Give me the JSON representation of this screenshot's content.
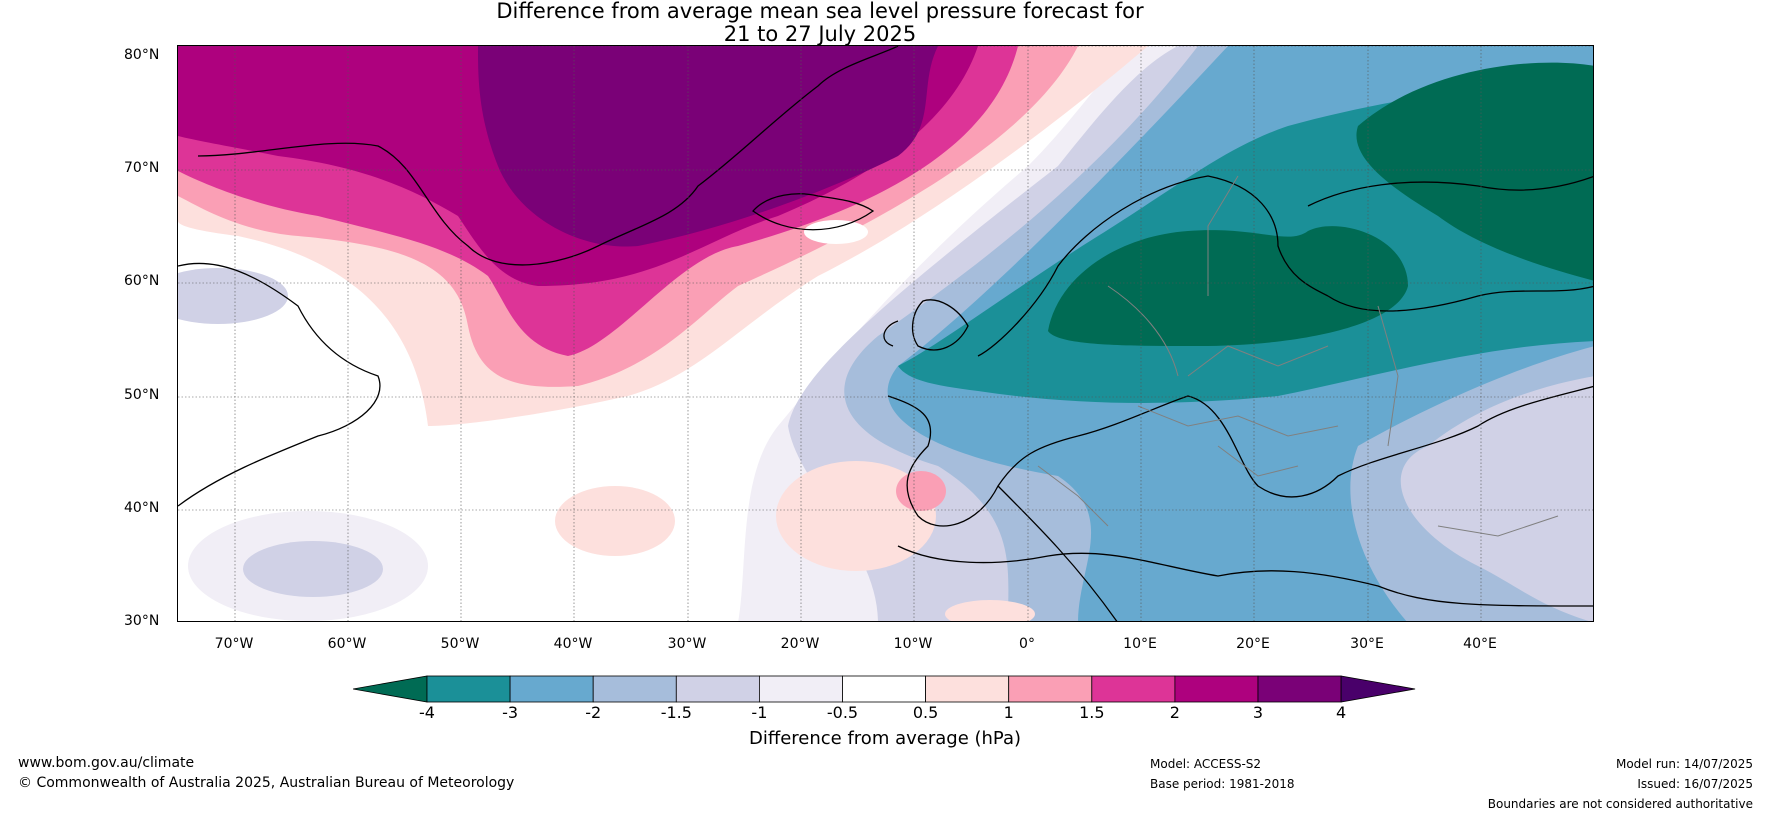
{
  "title": {
    "line1": "Difference from average mean sea level pressure forecast for",
    "line2": "21 to 27 July 2025"
  },
  "axes": {
    "lat_labels": [
      "80°N",
      "70°N",
      "60°N",
      "50°N",
      "40°N",
      "30°N"
    ],
    "lon_labels": [
      "70°W",
      "60°W",
      "50°W",
      "40°W",
      "30°W",
      "20°W",
      "10°W",
      "0°",
      "10°E",
      "20°E",
      "30°E",
      "40°E"
    ]
  },
  "colorbar": {
    "ticks": [
      "-4",
      "-3",
      "-2",
      "-1.5",
      "-1",
      "-0.5",
      "0.5",
      "1",
      "1.5",
      "2",
      "3",
      "4"
    ],
    "colors": [
      "#006b54",
      "#1b9098",
      "#67a9cf",
      "#a6bddb",
      "#d0d1e6",
      "#f1eef6",
      "#ffffff",
      "#fde0dd",
      "#fa9fb5",
      "#dd3497",
      "#ae017e",
      "#7a0177",
      "#49006a"
    ],
    "title": "Difference from average (hPa)"
  },
  "footer": {
    "website": "www.bom.gov.au/climate",
    "copyright": "© Commonwealth of Australia 2025, Australian Bureau of Meteorology",
    "model": "Model: ACCESS-S2",
    "base_period": "Base period: 1981-2018",
    "model_run": "Model run: 14/07/2025",
    "issued": "Issued: 16/07/2025",
    "disclaimer": "Boundaries are not considered authoritative"
  }
}
